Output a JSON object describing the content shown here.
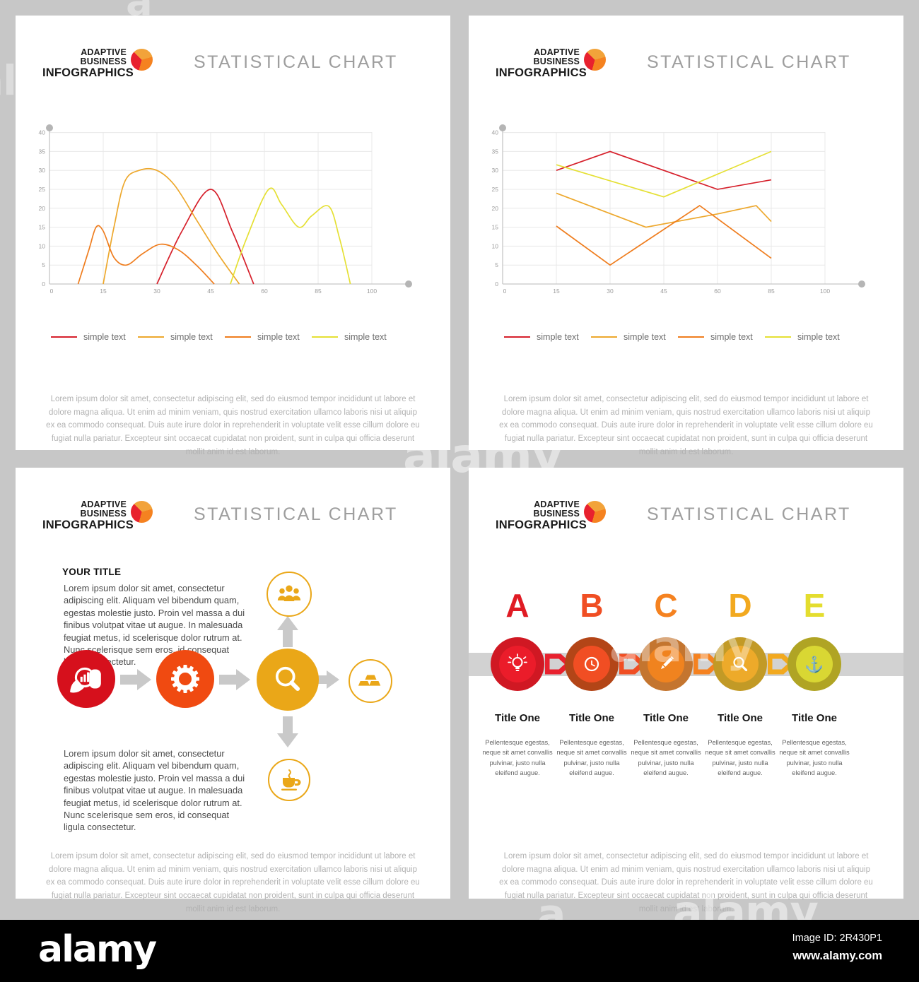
{
  "brand": {
    "line1": "ADAPTIVE BUSINESS",
    "line2": "INFOGRAPHICS"
  },
  "slide_title": "STATISTICAL CHART",
  "legend": {
    "items": [
      "simple text",
      "simple text",
      "simple text",
      "simple text"
    ]
  },
  "footer_text": "Lorem ipsum dolor sit amet, consectetur adipiscing elit, sed do eiusmod tempor incididunt ut labore et dolore magna aliqua. Ut enim ad minim veniam, quis nostrud exercitation ullamco laboris nisi ut aliquip ex ea commodo consequat. Duis aute irure dolor in reprehenderit in voluptate velit esse cillum dolore eu fugiat nulla pariatur. Excepteur sint occaecat cupidatat non proident, sunt in culpa qui officia deserunt mollit anim id est laborum.",
  "chart_data": [
    {
      "type": "line",
      "subtype": "smooth-bell-curves",
      "smooth": true,
      "title": "STATISTICAL CHART",
      "x_ticks": [
        0,
        15,
        30,
        45,
        60,
        85,
        100
      ],
      "y_ticks": [
        0,
        5,
        10,
        15,
        20,
        25,
        30,
        35,
        40
      ],
      "ylim": [
        0,
        42
      ],
      "grid": true,
      "legend_position": "bottom",
      "series": [
        {
          "name": "simple text",
          "color": "#d6202b",
          "points": [
            [
              30,
              0
            ],
            [
              37,
              14
            ],
            [
              45,
              25
            ],
            [
              51,
              14
            ],
            [
              57,
              0
            ]
          ]
        },
        {
          "name": "simple text",
          "color": "#eda82d",
          "points": [
            [
              15,
              0
            ],
            [
              18,
              15
            ],
            [
              21,
              27
            ],
            [
              25,
              30
            ],
            [
              30,
              30
            ],
            [
              35,
              26
            ],
            [
              41,
              17
            ],
            [
              47,
              8
            ],
            [
              53,
              0
            ]
          ]
        },
        {
          "name": "simple text",
          "color": "#ef7d1e",
          "points": [
            [
              8,
              0
            ],
            [
              11,
              9
            ],
            [
              13,
              15
            ],
            [
              15,
              14
            ],
            [
              18,
              7
            ],
            [
              21.5,
              5
            ],
            [
              26,
              8
            ],
            [
              31,
              10.5
            ],
            [
              36,
              9
            ],
            [
              41,
              5
            ],
            [
              46,
              0
            ]
          ]
        },
        {
          "name": "simple text",
          "color": "#e5e034",
          "points": [
            [
              50.5,
              0
            ],
            [
              55,
              12
            ],
            [
              62,
              25
            ],
            [
              68,
              21
            ],
            [
              76,
              15
            ],
            [
              82,
              18
            ],
            [
              88,
              20.5
            ],
            [
              91,
              12
            ],
            [
              94,
              0
            ]
          ]
        }
      ]
    },
    {
      "type": "line",
      "subtype": "straight-segments",
      "smooth": false,
      "title": "STATISTICAL CHART",
      "x_ticks": [
        0,
        15,
        30,
        45,
        60,
        85,
        100
      ],
      "y_ticks": [
        0,
        5,
        10,
        15,
        20,
        25,
        30,
        35,
        40
      ],
      "ylim": [
        0,
        42
      ],
      "grid": true,
      "legend_position": "bottom",
      "series": [
        {
          "name": "simple text",
          "color": "#d6202b",
          "points": [
            [
              15,
              30
            ],
            [
              30,
              35
            ],
            [
              60,
              25
            ],
            [
              85,
              27.5
            ]
          ]
        },
        {
          "name": "simple text",
          "color": "#eda82d",
          "points": [
            [
              15,
              24
            ],
            [
              40,
              15
            ],
            [
              60,
              18.5
            ],
            [
              78,
              20.7
            ],
            [
              85,
              16.5
            ]
          ]
        },
        {
          "name": "simple text",
          "color": "#ef7d1e",
          "points": [
            [
              15,
              15.3
            ],
            [
              30,
              5
            ],
            [
              55,
              20.7
            ],
            [
              85,
              6.8
            ]
          ]
        },
        {
          "name": "simple text",
          "color": "#e5e034",
          "points": [
            [
              15,
              31.5
            ],
            [
              45,
              23
            ],
            [
              85,
              35
            ]
          ]
        }
      ]
    }
  ],
  "flow": {
    "title": "YOUR TITLE",
    "paragraph": "Lorem ipsum dolor sit amet, consectetur adipiscing elit. Aliquam vel bibendum quam, egestas molestie justo. Proin vel massa a dui finibus volutpat vitae ut augue. In malesuada feugiat metus, id scelerisque dolor rutrum at.  Nunc scelerisque sem eros, id consequat ligula consectetur.",
    "paragraph2": "Lorem ipsum dolor sit amet, consectetur adipiscing elit. Aliquam vel bibendum quam, egestas molestie justo. Proin vel massa a dui finibus volutpat vitae ut augue. In malesuada feugiat metus, id scelerisque dolor rutrum at.  Nunc scelerisque sem eros, id consequat ligula consectetur.",
    "arrow_color": "#c9c9c9",
    "nodes": [
      {
        "icon": "hand-chart",
        "color": "#d6101c",
        "style": "filled"
      },
      {
        "icon": "gear",
        "color": "#f04a11",
        "style": "filled"
      },
      {
        "icon": "magnifier",
        "color": "#eaa718",
        "style": "filled"
      },
      {
        "icon": "people",
        "color": "#eaa718",
        "style": "outline"
      },
      {
        "icon": "gold-bars",
        "color": "#eaa718",
        "style": "outline"
      },
      {
        "icon": "coffee",
        "color": "#eaa718",
        "style": "outline"
      }
    ]
  },
  "process": {
    "band_color": "#d2d2d2",
    "arrow_colors": [
      "#e8212e",
      "#f04e23",
      "#f58220",
      "#f2a91f"
    ],
    "steps": [
      {
        "letter": "A",
        "letter_color": "#e01b24",
        "outer": "#d01823",
        "inner": "#eb1c2a",
        "icon": "lightbulb",
        "title": "Title One",
        "text": "Pellentesque egestas, neque sit amet convallis pulvinar, justo nulla eleifend augue."
      },
      {
        "letter": "B",
        "letter_color": "#f04e23",
        "outer": "#b34517",
        "inner": "#f14e23",
        "icon": "clock",
        "title": "Title One",
        "text": "Pellentesque egestas, neque sit amet convallis pulvinar, justo nulla eleifend augue."
      },
      {
        "letter": "C",
        "letter_color": "#f58220",
        "outer": "#c4752f",
        "inner": "#f0831f",
        "icon": "pencil",
        "title": "Title One",
        "text": "Pellentesque egestas, neque sit amet convallis pulvinar, justo nulla eleifend augue."
      },
      {
        "letter": "D",
        "letter_color": "#f2a91f",
        "outer": "#c29a26",
        "inner": "#edaa2a",
        "icon": "magnifier",
        "title": "Title One",
        "text": "Pellentesque egestas, neque sit amet convallis pulvinar, justo nulla eleifend augue."
      },
      {
        "letter": "E",
        "letter_color": "#e4dd2e",
        "outer": "#b0a424",
        "inner": "#d9d733",
        "icon": "anchor",
        "title": "Title One",
        "text": "Pellentesque egestas, neque sit amet convallis pulvinar, justo nulla eleifend augue."
      }
    ]
  },
  "watermark": {
    "text": "alamy"
  },
  "alamy_bar": {
    "logo": "alamy",
    "image_id": "Image ID: 2R430P1",
    "url": "www.alamy.com"
  }
}
